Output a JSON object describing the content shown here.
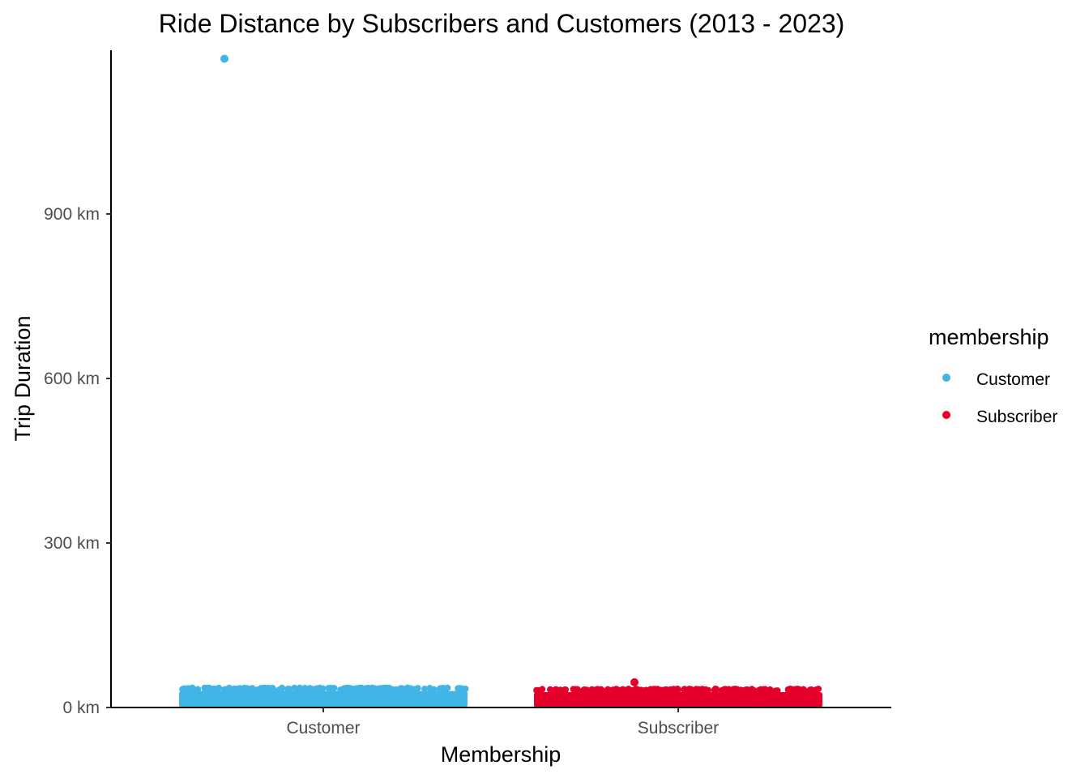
{
  "chart_data": {
    "type": "scatter",
    "title": "Ride Distance by Subscribers and Customers (2013 - 2023)",
    "xlabel": "Membership",
    "ylabel": "Trip Duration",
    "categories": [
      "Customer",
      "Subscriber"
    ],
    "y_ticks": [
      {
        "value": 0,
        "label": "0 km"
      },
      {
        "value": 300,
        "label": "300 km"
      },
      {
        "value": 600,
        "label": "600 km"
      },
      {
        "value": 900,
        "label": "900 km"
      }
    ],
    "ylim": [
      0,
      1185
    ],
    "grid": false,
    "legend": {
      "title": "membership",
      "placement": "right",
      "entries": [
        {
          "label": "Customer",
          "color": "#41b6e6"
        },
        {
          "label": "Subscriber",
          "color": "#e4002b"
        }
      ]
    },
    "series": [
      {
        "name": "Customer",
        "color": "#41b6e6",
        "category": "Customer",
        "typical_range_km": [
          0,
          36
        ],
        "outliers": [
          {
            "y": 1183
          }
        ]
      },
      {
        "name": "Subscriber",
        "color": "#e4002b",
        "category": "Subscriber",
        "typical_range_km": [
          0,
          34
        ],
        "outliers": [
          {
            "y": 46
          }
        ]
      }
    ]
  }
}
